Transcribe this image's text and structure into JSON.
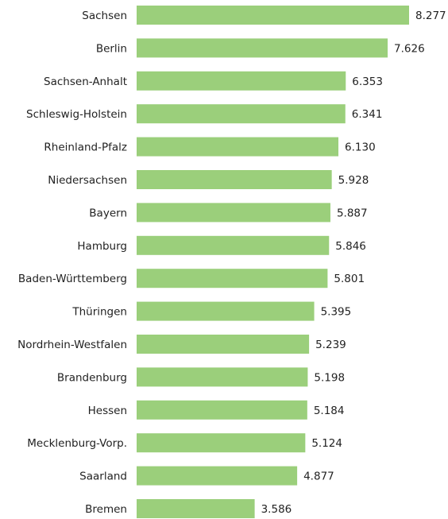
{
  "chart_data": {
    "type": "bar",
    "orientation": "horizontal",
    "categories": [
      "Sachsen",
      "Berlin",
      "Sachsen-Anhalt",
      "Schleswig-Holstein",
      "Rheinland-Pfalz",
      "Niedersachsen",
      "Bayern",
      "Hamburg",
      "Baden-Württemberg",
      "Thüringen",
      "Nordrhein-Westfalen",
      "Brandenburg",
      "Hessen",
      "Mecklenburg-Vorp.",
      "Saarland",
      "Bremen"
    ],
    "values": [
      8277,
      7626,
      6353,
      6341,
      6130,
      5928,
      5887,
      5846,
      5801,
      5395,
      5239,
      5198,
      5184,
      5124,
      4877,
      3586
    ],
    "value_labels": [
      "8.277",
      "7.626",
      "6.353",
      "6.341",
      "6.130",
      "5.928",
      "5.887",
      "5.846",
      "5.801",
      "5.395",
      "5.239",
      "5.198",
      "5.184",
      "5.124",
      "4.877",
      "3.586"
    ],
    "color": "#9bcf7b"
  }
}
